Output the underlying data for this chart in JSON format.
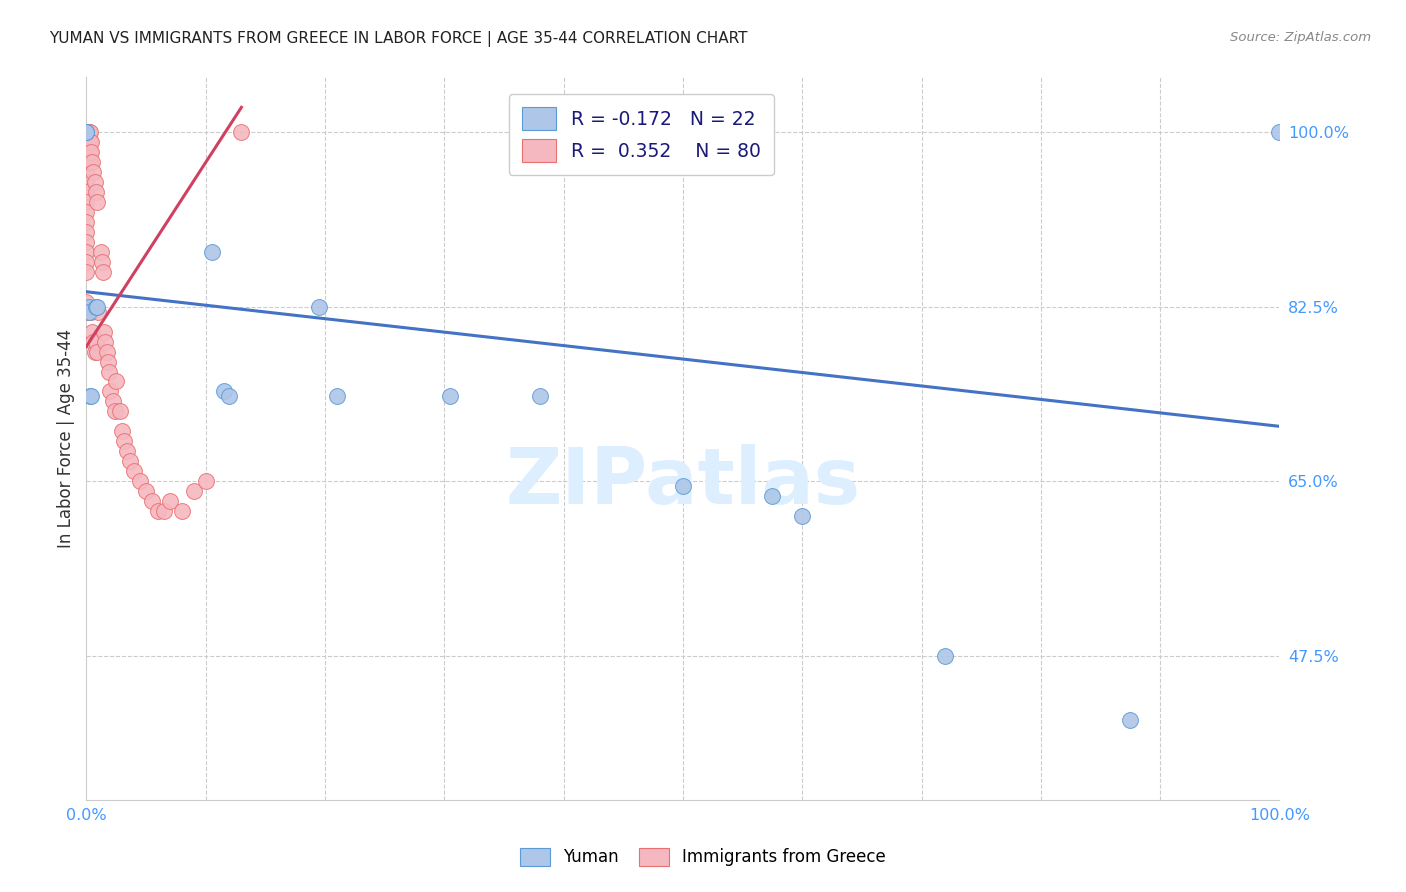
{
  "title": "YUMAN VS IMMIGRANTS FROM GREECE IN LABOR FORCE | AGE 35-44 CORRELATION CHART",
  "source": "Source: ZipAtlas.com",
  "ylabel": "In Labor Force | Age 35-44",
  "R_blue": -0.172,
  "N_blue": 22,
  "R_pink": 0.352,
  "N_pink": 80,
  "blue_color": "#aec6e8",
  "pink_color": "#f5b8c0",
  "blue_edge_color": "#5b9bd5",
  "pink_edge_color": "#e87070",
  "blue_line_color": "#4472c4",
  "pink_line_color": "#d04060",
  "watermark_color": "#ddeeff",
  "grid_color": "#cccccc",
  "y_tick_color": "#4499ff",
  "x_tick_color": "#4499ff",
  "xlim": [
    0.0,
    1.0
  ],
  "ylim": [
    0.33,
    1.055
  ],
  "y_ticks": [
    1.0,
    0.825,
    0.65,
    0.475
  ],
  "y_tick_labels": [
    "100.0%",
    "82.5%",
    "65.0%",
    "47.5%"
  ],
  "x_ticks": [
    0.0,
    1.0
  ],
  "x_tick_labels": [
    "0.0%",
    "100.0%"
  ],
  "blue_trend_x": [
    0.0,
    1.0
  ],
  "blue_trend_y": [
    0.84,
    0.705
  ],
  "pink_trend_x": [
    0.0,
    0.13
  ],
  "pink_trend_y": [
    0.785,
    1.025
  ],
  "blue_x": [
    0.0,
    0.0,
    0.0,
    0.002,
    0.002,
    0.003,
    0.004,
    0.008,
    0.009,
    0.105,
    0.115,
    0.12,
    0.195,
    0.21,
    0.305,
    0.5,
    0.575,
    0.6,
    0.72,
    0.875,
    1.0,
    0.38
  ],
  "blue_y": [
    1.0,
    1.0,
    1.0,
    0.825,
    0.82,
    0.735,
    0.735,
    0.825,
    0.825,
    0.88,
    0.74,
    0.735,
    0.825,
    0.735,
    0.735,
    0.645,
    0.635,
    0.615,
    0.475,
    0.41,
    1.0,
    0.735
  ],
  "pink_x": [
    0.0,
    0.0,
    0.0,
    0.0,
    0.0,
    0.0,
    0.0,
    0.0,
    0.0,
    0.0,
    0.0,
    0.0,
    0.0,
    0.0,
    0.0,
    0.0,
    0.0,
    0.0,
    0.0,
    0.0,
    0.0,
    0.0,
    0.0,
    0.0,
    0.0,
    0.0,
    0.0,
    0.0,
    0.002,
    0.002,
    0.002,
    0.002,
    0.002,
    0.002,
    0.003,
    0.003,
    0.003,
    0.003,
    0.004,
    0.004,
    0.004,
    0.005,
    0.005,
    0.006,
    0.006,
    0.007,
    0.007,
    0.008,
    0.008,
    0.009,
    0.009,
    0.01,
    0.012,
    0.013,
    0.014,
    0.015,
    0.016,
    0.017,
    0.018,
    0.019,
    0.02,
    0.022,
    0.024,
    0.025,
    0.028,
    0.03,
    0.032,
    0.034,
    0.037,
    0.04,
    0.045,
    0.05,
    0.055,
    0.06,
    0.065,
    0.07,
    0.08,
    0.09,
    0.1,
    0.13
  ],
  "pink_y": [
    1.0,
    1.0,
    1.0,
    1.0,
    1.0,
    1.0,
    1.0,
    1.0,
    1.0,
    1.0,
    1.0,
    1.0,
    0.98,
    0.97,
    0.96,
    0.95,
    0.95,
    0.94,
    0.93,
    0.92,
    0.91,
    0.9,
    0.89,
    0.88,
    0.87,
    0.86,
    0.83,
    0.82,
    1.0,
    1.0,
    1.0,
    0.99,
    0.98,
    0.97,
    1.0,
    0.99,
    0.98,
    0.97,
    0.99,
    0.98,
    0.82,
    0.97,
    0.8,
    0.96,
    0.79,
    0.95,
    0.78,
    0.94,
    0.79,
    0.93,
    0.78,
    0.82,
    0.88,
    0.87,
    0.86,
    0.8,
    0.79,
    0.78,
    0.77,
    0.76,
    0.74,
    0.73,
    0.72,
    0.75,
    0.72,
    0.7,
    0.69,
    0.68,
    0.67,
    0.66,
    0.65,
    0.64,
    0.63,
    0.62,
    0.62,
    0.63,
    0.62,
    0.64,
    0.65,
    1.0
  ]
}
